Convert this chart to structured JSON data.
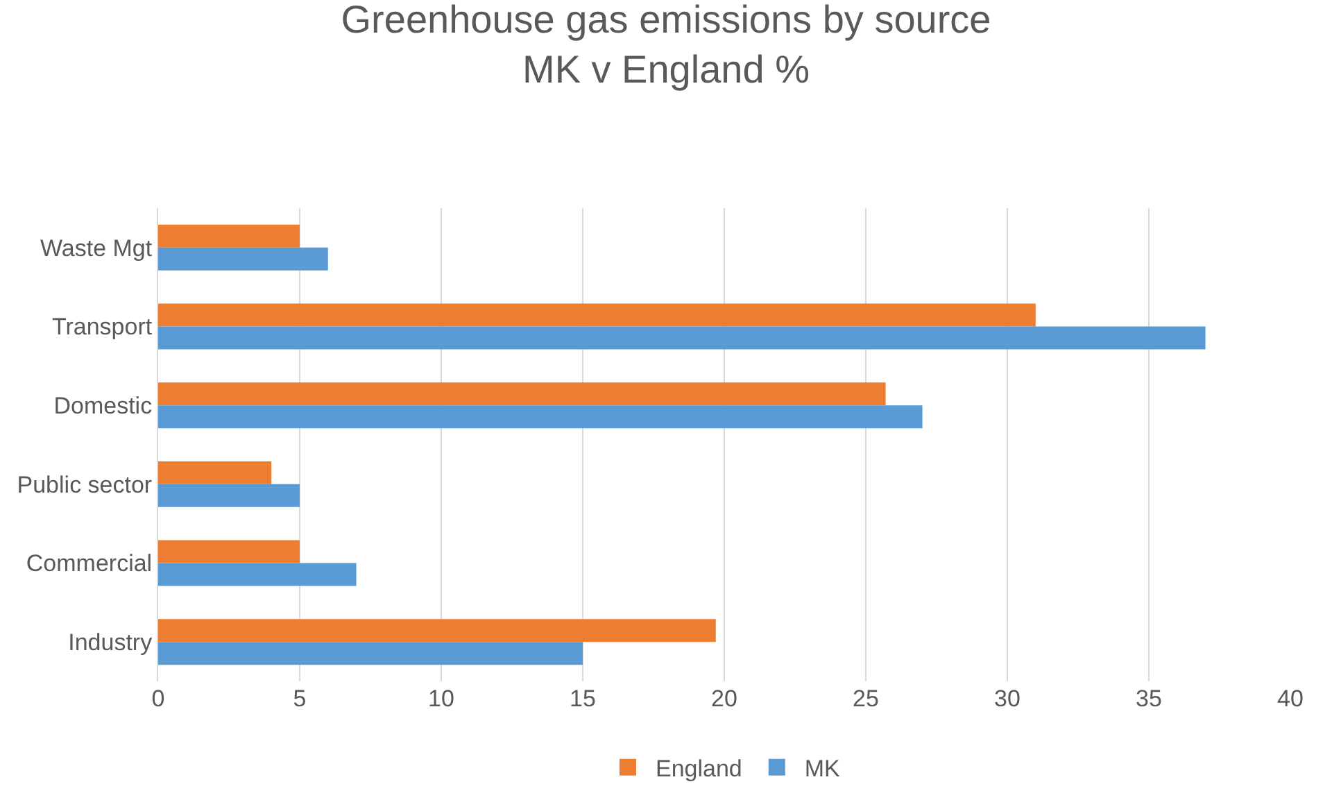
{
  "chart_data": {
    "type": "bar",
    "orientation": "horizontal",
    "title": "Greenhouse gas emissions by source MK v England %",
    "categories": [
      "Waste Mgt",
      "Transport",
      "Domestic",
      "Public sector",
      "Commercial",
      "Industry"
    ],
    "series": [
      {
        "name": "England",
        "color": "#ed7d31",
        "values": [
          5,
          31,
          25.7,
          4,
          5,
          19.7
        ]
      },
      {
        "name": "MK",
        "color": "#5b9bd5",
        "values": [
          6,
          37,
          27,
          5,
          7,
          15
        ]
      }
    ],
    "xlim": [
      0,
      40
    ],
    "xticks": [
      0,
      5,
      10,
      15,
      20,
      25,
      30,
      35,
      40
    ],
    "grid": "x",
    "legend": "bottom"
  }
}
